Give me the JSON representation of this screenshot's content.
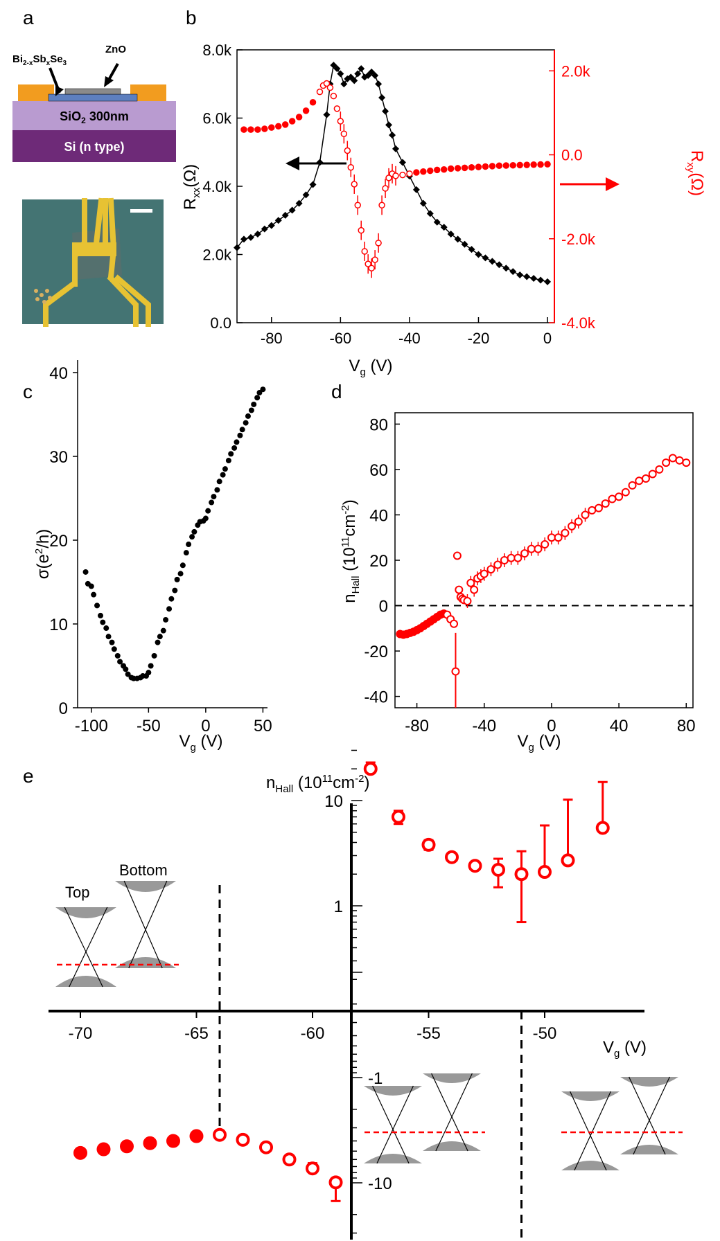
{
  "panels": {
    "a": "a",
    "b": "b",
    "c": "c",
    "d": "d",
    "e": "e"
  },
  "schematic": {
    "label_material_main": "Bi",
    "label_material_sub1": "2-x",
    "label_material_mid": "Sb",
    "label_material_sub2": "x",
    "label_material_end": "Se",
    "label_material_sub3": "3",
    "label_cap": "ZnO",
    "label_oxide_main": "SiO",
    "label_oxide_sub": "2",
    "label_oxide_end": " 300nm",
    "label_substrate": "Si (n type)",
    "colors": {
      "contact": "#f29c1f",
      "oxide": "#b99bd0",
      "substrate": "#6e2a78",
      "film": "#5d7fbf",
      "cap": "#8a8a8a"
    }
  },
  "chart_data": [
    {
      "id": "b",
      "type": "line",
      "xlabel": "V",
      "xlabel_sub": "g",
      "xlabel_unit": " (V)",
      "ylabel_left": "R",
      "ylabel_left_sub": "xx",
      "ylabel_left_unit": "(Ω)",
      "ylabel_right": "R",
      "ylabel_right_sub": "xy",
      "ylabel_right_unit": "(Ω)",
      "xlim": [
        -90,
        2
      ],
      "ylim_left": [
        0,
        8000
      ],
      "ylim_right": [
        -4000,
        2500
      ],
      "x_ticks": [
        -80,
        -60,
        -40,
        -20,
        0
      ],
      "x_tick_labels": [
        "-80",
        "-60",
        "-40",
        "-20",
        "0"
      ],
      "y_left_ticks": [
        0,
        2000,
        4000,
        6000,
        8000
      ],
      "y_left_tick_labels": [
        "0.0",
        "2.0k",
        "4.0k",
        "6.0k",
        "8.0k"
      ],
      "y_right_ticks": [
        -4000,
        -2000,
        0,
        2000
      ],
      "y_right_tick_labels": [
        "-4.0k",
        "-2.0k",
        "0.0",
        "2.0k"
      ],
      "series": [
        {
          "name": "Rxx",
          "axis": "left",
          "color": "#000000",
          "x": [
            -90,
            -88,
            -86,
            -84,
            -82,
            -80,
            -78,
            -76,
            -74,
            -72,
            -70,
            -68,
            -66,
            -64,
            -63,
            -62,
            -61,
            -60,
            -59,
            -58,
            -57,
            -56,
            -55,
            -54,
            -53,
            -52,
            -51,
            -50,
            -49,
            -48,
            -47,
            -46,
            -45,
            -44,
            -42,
            -40,
            -38,
            -36,
            -34,
            -32,
            -30,
            -28,
            -26,
            -24,
            -22,
            -20,
            -18,
            -16,
            -14,
            -12,
            -10,
            -8,
            -6,
            -4,
            -2,
            0
          ],
          "values": [
            2200,
            2450,
            2500,
            2600,
            2750,
            2850,
            3000,
            3150,
            3300,
            3500,
            3750,
            4050,
            4700,
            6100,
            7000,
            7550,
            7450,
            7300,
            7000,
            7150,
            7200,
            7100,
            7300,
            7450,
            7200,
            7250,
            7350,
            7250,
            7000,
            6600,
            6200,
            5800,
            5500,
            5100,
            4700,
            4300,
            3900,
            3500,
            3200,
            2950,
            2800,
            2600,
            2450,
            2300,
            2150,
            2000,
            1900,
            1800,
            1700,
            1600,
            1500,
            1400,
            1350,
            1300,
            1250,
            1200
          ]
        },
        {
          "name": "Rxy",
          "axis": "right",
          "color": "#ff0000",
          "x": [
            -88,
            -86,
            -84,
            -82,
            -80,
            -78,
            -76,
            -74,
            -72,
            -70,
            -68,
            -66,
            -65,
            -64,
            -63,
            -62,
            -61,
            -60,
            -59,
            -58,
            -57,
            -56,
            -55,
            -54,
            -53,
            -52,
            -51,
            -50,
            -49,
            -48,
            -47,
            -46,
            -45,
            -44,
            -42,
            -40,
            -38,
            -36,
            -34,
            -32,
            -30,
            -28,
            -26,
            -24,
            -22,
            -20,
            -18,
            -16,
            -14,
            -12,
            -10,
            -8,
            -6,
            -4,
            -2,
            0
          ],
          "values": [
            600,
            600,
            600,
            620,
            650,
            680,
            720,
            800,
            900,
            1050,
            1250,
            1500,
            1650,
            1700,
            1600,
            1400,
            1100,
            800,
            500,
            100,
            -300,
            -700,
            -1200,
            -1800,
            -2300,
            -2600,
            -2700,
            -2500,
            -2100,
            -1200,
            -800,
            -550,
            -450,
            -500,
            -480,
            -450,
            -420,
            -400,
            -380,
            -360,
            -350,
            -330,
            -320,
            -310,
            -300,
            -290,
            -280,
            -270,
            -260,
            -255,
            -250,
            -245,
            -240,
            -235,
            -230,
            -225
          ]
        }
      ]
    },
    {
      "id": "c",
      "type": "scatter",
      "xlabel": "V",
      "xlabel_sub": "g",
      "xlabel_unit": " (V)",
      "ylabel": "σ(e",
      "ylabel_sup": "2",
      "ylabel_end": "/h)",
      "xlim": [
        -112,
        54
      ],
      "ylim": [
        0,
        40
      ],
      "x_ticks": [
        -100,
        -50,
        0,
        50
      ],
      "x_tick_labels": [
        "-100",
        "-50",
        "0",
        "50"
      ],
      "y_ticks": [
        0,
        10,
        20,
        30,
        40
      ],
      "y_tick_labels": [
        "0",
        "10",
        "20",
        "30",
        "40"
      ],
      "series": [
        {
          "name": "sigma",
          "color": "#000000",
          "x": [
            -105,
            -103,
            -100,
            -98,
            -95,
            -92,
            -90,
            -87,
            -85,
            -82,
            -80,
            -77,
            -75,
            -72,
            -70,
            -68,
            -65,
            -63,
            -60,
            -57,
            -55,
            -52,
            -50,
            -48,
            -45,
            -42,
            -40,
            -37,
            -35,
            -32,
            -30,
            -27,
            -25,
            -22,
            -20,
            -17,
            -15,
            -12,
            -10,
            -7,
            -5,
            -2,
            0,
            2,
            5,
            7,
            10,
            12,
            15,
            17,
            20,
            22,
            25,
            27,
            30,
            32,
            35,
            37,
            40,
            42,
            45,
            47,
            50
          ],
          "values": [
            16.2,
            14.8,
            14.5,
            13.5,
            12.2,
            11.0,
            10.2,
            9.5,
            8.5,
            7.8,
            7.0,
            6.2,
            5.5,
            5.0,
            4.6,
            4.0,
            3.6,
            3.5,
            3.5,
            3.6,
            3.8,
            3.8,
            4.2,
            5.0,
            6.2,
            7.8,
            8.5,
            9.2,
            10.5,
            11.8,
            13.0,
            14.0,
            15.3,
            16.0,
            17.0,
            18.5,
            19.5,
            20.4,
            21.0,
            21.8,
            22.2,
            22.3,
            22.6,
            23.5,
            24.5,
            25.2,
            26.0,
            27.0,
            27.8,
            28.5,
            29.5,
            30.3,
            31.0,
            31.7,
            32.5,
            33.2,
            34.0,
            34.8,
            35.5,
            36.2,
            37.0,
            37.6,
            38.0
          ]
        }
      ]
    },
    {
      "id": "d",
      "type": "scatter",
      "xlabel": "V",
      "xlabel_sub": "g",
      "xlabel_unit": " (V)",
      "ylabel": "n",
      "ylabel_sub": "Hall",
      "ylabel_unit_open": " (10",
      "ylabel_sup1": "11",
      "ylabel_unit_mid": "cm",
      "ylabel_sup2": "-2",
      "ylabel_unit_close": ")",
      "xlim": [
        -93,
        84
      ],
      "ylim": [
        -45,
        85
      ],
      "x_ticks": [
        -80,
        -40,
        0,
        40,
        80
      ],
      "x_tick_labels": [
        "-80",
        "-40",
        "0",
        "40",
        "80"
      ],
      "y_ticks": [
        -40,
        -20,
        0,
        20,
        40,
        60,
        80
      ],
      "y_tick_labels": [
        "-40",
        "-20",
        "0",
        "20",
        "40",
        "60",
        "80"
      ],
      "series": [
        {
          "name": "nHall",
          "color": "#ff0000",
          "x": [
            -90,
            -88,
            -86,
            -84,
            -82,
            -80,
            -78,
            -76,
            -74,
            -72,
            -70,
            -68,
            -66,
            -64,
            -62,
            -60,
            -58,
            -57,
            -56,
            -55,
            -54,
            -53,
            -52,
            -50,
            -48,
            -46,
            -44,
            -42,
            -40,
            -36,
            -32,
            -28,
            -24,
            -20,
            -16,
            -12,
            -8,
            -4,
            0,
            4,
            8,
            12,
            16,
            20,
            24,
            28,
            32,
            36,
            40,
            44,
            48,
            52,
            56,
            60,
            64,
            68,
            72,
            76,
            80
          ],
          "values": [
            -12.5,
            -12.8,
            -12.5,
            -12,
            -11.5,
            -10.8,
            -10,
            -9,
            -8,
            -7,
            -6,
            -5,
            -4,
            -3.5,
            -4,
            -6,
            -8,
            -29,
            22,
            7,
            3.8,
            3,
            2.5,
            2,
            10,
            7,
            12,
            13,
            14,
            16,
            18,
            20,
            21,
            21,
            23,
            25,
            25,
            27,
            30,
            30,
            32,
            35,
            37,
            40,
            42,
            43,
            45,
            47,
            48,
            50,
            53,
            55,
            56,
            58,
            60,
            63,
            65,
            64,
            63
          ]
        }
      ]
    },
    {
      "id": "e",
      "type": "scatter",
      "xlabel": "V",
      "xlabel_sub": "g",
      "xlabel_unit": " (V)",
      "ylabel": "n",
      "ylabel_sub": "Hall",
      "ylabel_unit_open": " (10",
      "ylabel_sup1": "11",
      "ylabel_unit_mid": "cm",
      "ylabel_sup2": "-2",
      "ylabel_unit_close": ")",
      "yscale": "symlog",
      "xlim": [
        -72,
        -46.5
      ],
      "x_ticks": [
        -70,
        -65,
        -60,
        -55,
        -50
      ],
      "x_tick_labels": [
        "-70",
        "-65",
        "-60",
        "-55",
        "-50"
      ],
      "y_tick_labels": [
        "10",
        "1",
        "-1",
        "-10"
      ],
      "dashed_lines_x": [
        -64,
        -51
      ],
      "series": [
        {
          "name": "nHall",
          "color": "#ff0000",
          "x": [
            -70,
            -69,
            -68,
            -67,
            -66,
            -65,
            -64,
            -63,
            -62,
            -61,
            -60,
            -59,
            -57.5,
            -56.3,
            -55,
            -54,
            -53,
            -52,
            -51,
            -50,
            -49,
            -47.5
          ],
          "values": [
            -5.2,
            -4.8,
            -4.5,
            -4.2,
            -4.0,
            -3.6,
            -3.5,
            -3.9,
            -4.6,
            -6.0,
            -7.3,
            -9.9,
            20,
            7,
            3.8,
            2.9,
            2.4,
            2.2,
            2.0,
            2.1,
            2.7,
            5.5
          ],
          "err_high": [
            0,
            0,
            0,
            0,
            0,
            0,
            0,
            0,
            0,
            0,
            0.8,
            0,
            3,
            1,
            0.4,
            0,
            0,
            0.6,
            1.3,
            3.7,
            7.5,
            9.5
          ],
          "err_low": [
            0,
            0,
            0,
            0,
            0,
            0,
            0,
            0,
            0,
            0,
            0,
            5,
            0,
            1,
            0.4,
            0,
            0,
            0.7,
            1.3,
            0,
            0,
            0
          ]
        }
      ],
      "inset_labels": {
        "top": "Top",
        "bottom": "Bottom"
      }
    }
  ]
}
